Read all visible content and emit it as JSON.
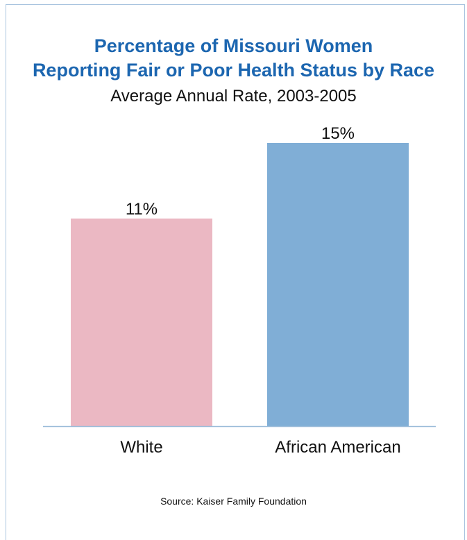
{
  "chart_data": {
    "type": "bar",
    "title_lines": [
      "Percentage of Missouri Women",
      "Reporting Fair or Poor Health Status by Race"
    ],
    "subtitle": "Average Annual Rate, 2003-2005",
    "categories": [
      "White",
      "African American"
    ],
    "values": [
      11,
      15
    ],
    "value_labels": [
      "11%",
      "15%"
    ],
    "colors": [
      "#ebb8c3",
      "#80aed6"
    ],
    "axis_color": "#9bbcd9",
    "ylim": [
      0,
      15
    ],
    "grid": false,
    "legend": "none",
    "xlabel": "",
    "ylabel": ""
  },
  "source": "Source: Kaiser Family Foundation"
}
